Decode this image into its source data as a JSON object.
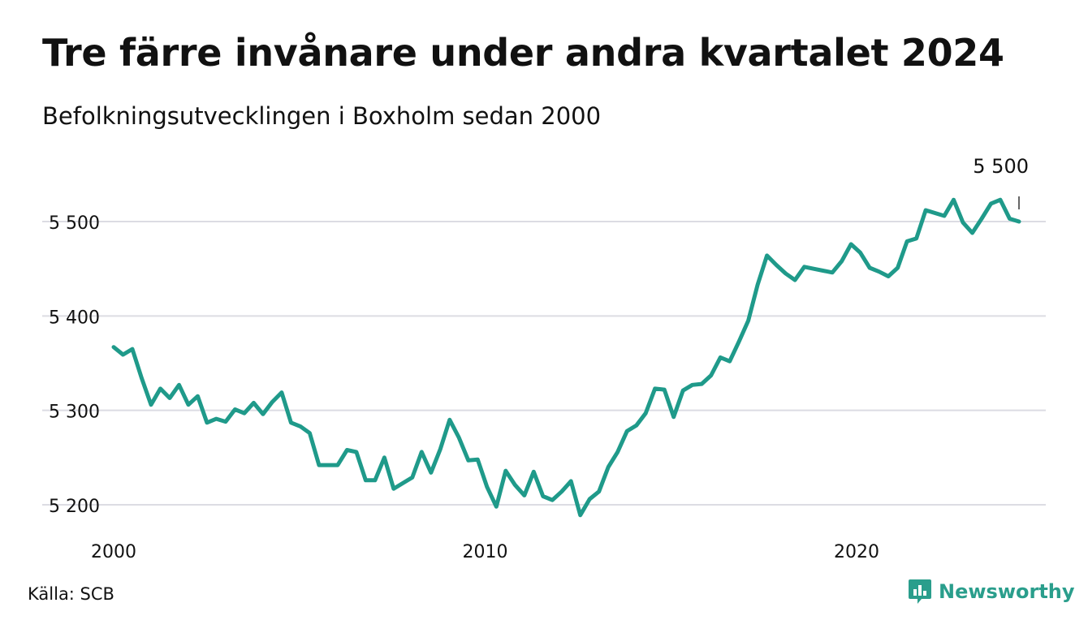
{
  "header": {
    "title": "Tre färre invånare under andra kvartalet 2024",
    "subtitle": "Befolkningsutvecklingen i Boxholm sedan 2000"
  },
  "footer": {
    "source": "Källa: SCB",
    "brand": "Newsworthy"
  },
  "colors": {
    "line": "#1f9a8a",
    "grid": "#dcdce3",
    "brand": "#2a9e8c"
  },
  "chart_data": {
    "type": "line",
    "title": "Tre färre invånare under andra kvartalet 2024",
    "subtitle": "Befolkningsutvecklingen i Boxholm sedan 2000",
    "xlabel": "",
    "ylabel": "",
    "x_ticks": [
      2000,
      2010,
      2020
    ],
    "x_tick_labels": [
      "2000",
      "2010",
      "2020"
    ],
    "y_ticks": [
      5200,
      5300,
      5400,
      5500
    ],
    "y_tick_labels": [
      "5 200",
      "5 300",
      "5 400",
      "5 500"
    ],
    "xlim": [
      2000.0,
      2024.25
    ],
    "ylim": [
      5190,
      5525
    ],
    "grid": true,
    "end_label": "5 500",
    "series": [
      {
        "frequency": "quarterly",
        "x_start": 2000.0,
        "x_step": 0.25,
        "values": [
          5367,
          5359,
          5365,
          5334,
          5306,
          5323,
          5313,
          5327,
          5306,
          5315,
          5287,
          5291,
          5288,
          5301,
          5297,
          5308,
          5296,
          5309,
          5319,
          5287,
          5283,
          5276,
          5242,
          5242,
          5242,
          5258,
          5256,
          5226,
          5226,
          5250,
          5217,
          5223,
          5229,
          5256,
          5234,
          5259,
          5290,
          5271,
          5247,
          5248,
          5219,
          5198,
          5236,
          5221,
          5210,
          5235,
          5209,
          5205,
          5214,
          5225,
          5189,
          5206,
          5214,
          5240,
          5256,
          5278,
          5284,
          5297,
          5323,
          5322,
          5293,
          5321,
          5327,
          5328,
          5337,
          5356,
          5352,
          5373,
          5395,
          5433,
          5464,
          5454,
          5445,
          5438,
          5452,
          5450,
          5448,
          5446,
          5458,
          5476,
          5467,
          5451,
          5447,
          5442,
          5451,
          5479,
          5482,
          5512,
          5509,
          5506,
          5523,
          5499,
          5488,
          5503,
          5519,
          5523,
          5503,
          5500
        ]
      }
    ]
  }
}
